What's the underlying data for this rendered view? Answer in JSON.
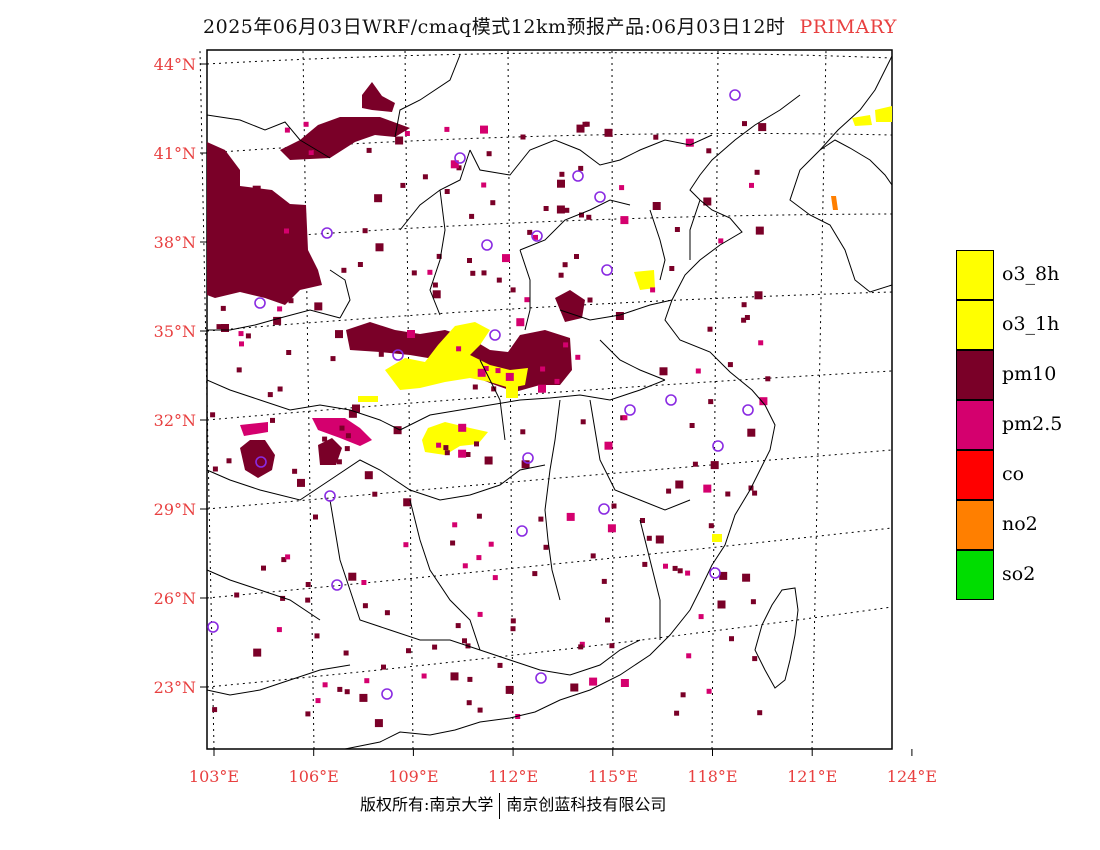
{
  "title": {
    "main": "2025年06月03日WRF/cmaq模式12km预报产品:06月03日12时",
    "tag": "PRIMARY"
  },
  "axes": {
    "lat_labels": [
      "44°N",
      "41°N",
      "38°N",
      "35°N",
      "32°N",
      "29°N",
      "26°N",
      "23°N"
    ],
    "lon_labels": [
      "103°E",
      "106°E",
      "109°E",
      "112°E",
      "115°E",
      "118°E",
      "121°E",
      "124°E"
    ],
    "label_color": "#e84040"
  },
  "legend": [
    {
      "label": "o3_8h",
      "color": "#ffff00"
    },
    {
      "label": "o3_1h",
      "color": "#ffff00"
    },
    {
      "label": "pm10",
      "color": "#7a0028"
    },
    {
      "label": "pm2.5",
      "color": "#d4006e"
    },
    {
      "label": "co",
      "color": "#ff0000"
    },
    {
      "label": "no2",
      "color": "#ff7f00"
    },
    {
      "label": "so2",
      "color": "#00dd00"
    }
  ],
  "footer": {
    "left": "版权所有:南京大学",
    "right": "南京创蓝科技有限公司"
  },
  "colors": {
    "station_marker": "#8a2be2",
    "boundary": "#000000",
    "graticule": "#000000"
  }
}
